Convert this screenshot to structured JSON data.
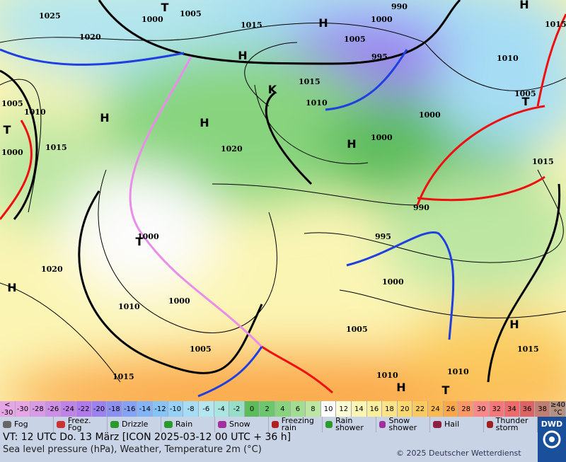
{
  "map": {
    "labels": [
      "1025",
      "1000",
      "T",
      "1005",
      "1015",
      "H",
      "990",
      "1000",
      "H",
      "1015",
      "1020",
      "H",
      "1005",
      "995",
      "1010",
      "1015",
      "1010",
      "K",
      "1005",
      "T",
      "H",
      "H",
      "1000",
      "1000",
      "H",
      "1005",
      "1010",
      "T",
      "1015",
      "1000",
      "1020",
      "1015",
      "990",
      "1000",
      "T",
      "995",
      "1020",
      "H",
      "1000",
      "1010",
      "1000",
      "1005",
      "H",
      "1005",
      "1015",
      "1015",
      "1010",
      "1010",
      "H",
      "T"
    ]
  },
  "legend": {
    "below": "<",
    "first": -30,
    "scale": [
      -30,
      -28,
      -26,
      -24,
      -22,
      -20,
      -18,
      -16,
      -14,
      -12,
      -10,
      -8,
      -6,
      -4,
      -2,
      0,
      2,
      4,
      6,
      8,
      10,
      12,
      14,
      16,
      18,
      20,
      22,
      24,
      26,
      28,
      30,
      32,
      34,
      36,
      38
    ],
    "above": "≥40",
    "unit": "°C",
    "colors": [
      "#e6a6e6",
      "#d99ae6",
      "#cc8ee6",
      "#bf82e6",
      "#b07aec",
      "#9c82f0",
      "#8c90f0",
      "#84a2f6",
      "#84b4f8",
      "#86c4f8",
      "#96d2f8",
      "#a6ddf4",
      "#b4e6ef",
      "#a8e6df",
      "#96dec8",
      "#5cbc5c",
      "#6cc66c",
      "#88d47e",
      "#a2de90",
      "#bce6a2",
      "#fcfcfc",
      "#fbfbd6",
      "#fbf5b4",
      "#fbee9c",
      "#fbe488",
      "#fbd870",
      "#fbca5e",
      "#fbba50",
      "#fba848",
      "#fb9868",
      "#f98888",
      "#f47878",
      "#ec6c6c",
      "#dc6464",
      "#c07f72",
      "#b39080"
    ],
    "items": [
      "Fog",
      "Freez. Fog",
      "Drizzle",
      "Rain",
      "Snow",
      "Freezing rain",
      "Rain shower",
      "Snow shower",
      "Hail",
      "Thunder storm"
    ]
  },
  "footer": {
    "line1": "VT: 12 UTC Do.  13 März [ICON 2025-03-12  00 UTC + 36 h]",
    "line2": "Sea level pressure (hPa), Weather, Temperature 2m (°C)",
    "copyright": "© 2025 Deutscher Wetterdienst",
    "logo": "DWD"
  }
}
